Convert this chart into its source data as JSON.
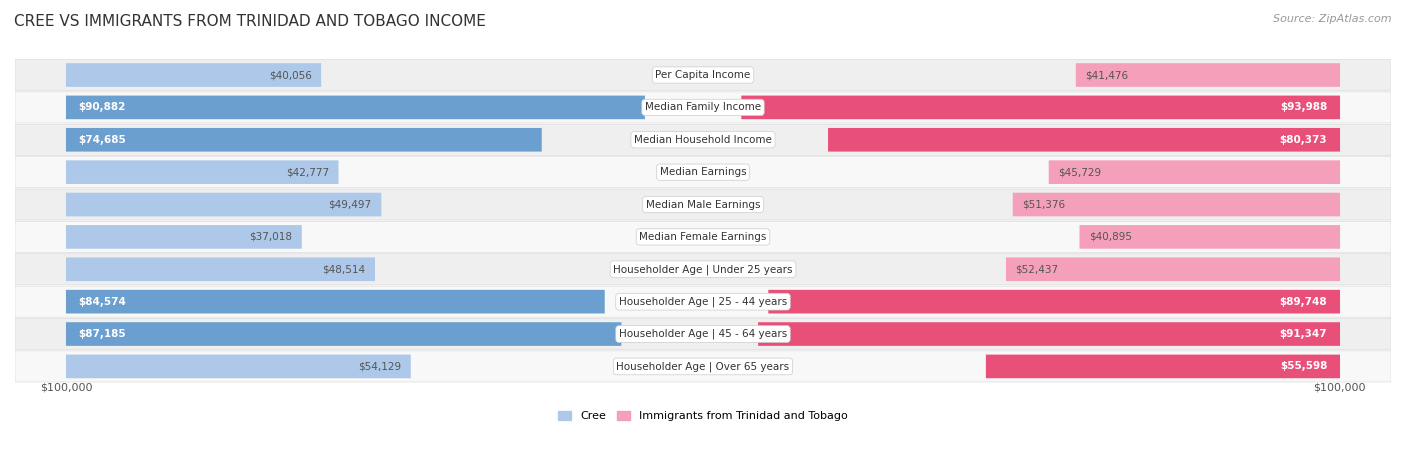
{
  "title": "CREE VS IMMIGRANTS FROM TRINIDAD AND TOBAGO INCOME",
  "source": "Source: ZipAtlas.com",
  "categories": [
    "Per Capita Income",
    "Median Family Income",
    "Median Household Income",
    "Median Earnings",
    "Median Male Earnings",
    "Median Female Earnings",
    "Householder Age | Under 25 years",
    "Householder Age | 25 - 44 years",
    "Householder Age | 45 - 64 years",
    "Householder Age | Over 65 years"
  ],
  "cree_values": [
    40056,
    90882,
    74685,
    42777,
    49497,
    37018,
    48514,
    84574,
    87185,
    54129
  ],
  "immigrant_values": [
    41476,
    93988,
    80373,
    45729,
    51376,
    40895,
    52437,
    89748,
    91347,
    55598
  ],
  "cree_labels": [
    "$40,056",
    "$90,882",
    "$74,685",
    "$42,777",
    "$49,497",
    "$37,018",
    "$48,514",
    "$84,574",
    "$87,185",
    "$54,129"
  ],
  "immigrant_labels": [
    "$41,476",
    "$93,988",
    "$80,373",
    "$45,729",
    "$51,376",
    "$40,895",
    "$52,437",
    "$89,748",
    "$91,347",
    "$55,598"
  ],
  "max_value": 100000,
  "cree_color_light": "#adc8e8",
  "cree_color_dark": "#6b9fcf",
  "immigrant_color_light": "#f4a0bb",
  "immigrant_color_dark": "#e8507a",
  "row_bg_odd": "#efefef",
  "row_bg_even": "#f8f8f8",
  "bg_color": "#ffffff",
  "label_inside_color": "#ffffff",
  "label_outside_color": "#555555",
  "xlabel_left": "$100,000",
  "xlabel_right": "$100,000",
  "legend_cree": "Cree",
  "legend_immigrant": "Immigrants from Trinidad and Tobago",
  "inside_threshold": 55000,
  "title_fontsize": 11,
  "label_fontsize": 7.5,
  "cat_fontsize": 7.5,
  "legend_fontsize": 8
}
